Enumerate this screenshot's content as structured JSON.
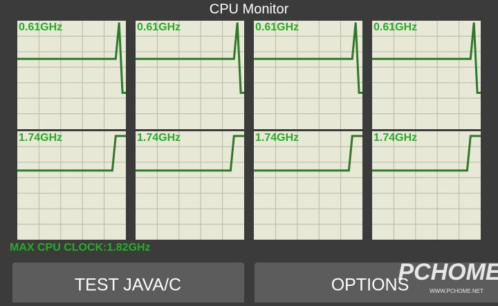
{
  "title": "CPU Monitor",
  "chart_data": [
    {
      "type": "line",
      "title": "0.61GHz",
      "ylim": [
        0,
        1.82
      ],
      "color": "#2a7a26",
      "values": [
        1.18,
        1.18,
        1.18,
        1.18,
        1.18,
        1.18,
        1.18,
        1.18,
        1.18,
        1.18,
        1.18,
        1.18,
        1.18,
        1.18,
        1.18,
        1.18,
        1.18,
        1.18,
        1.18,
        1.18,
        1.18,
        1.18,
        1.18,
        1.18,
        1.18,
        1.18,
        1.18,
        1.18,
        1.18,
        1.18,
        1.79,
        0.61,
        0.61
      ]
    },
    {
      "type": "line",
      "title": "0.61GHz",
      "ylim": [
        0,
        1.82
      ],
      "color": "#2a7a26",
      "values": [
        1.18,
        1.18,
        1.18,
        1.18,
        1.18,
        1.18,
        1.18,
        1.18,
        1.18,
        1.18,
        1.18,
        1.18,
        1.18,
        1.18,
        1.18,
        1.18,
        1.18,
        1.18,
        1.18,
        1.18,
        1.18,
        1.18,
        1.18,
        1.18,
        1.18,
        1.18,
        1.18,
        1.18,
        1.18,
        1.18,
        1.79,
        0.61,
        0.61
      ]
    },
    {
      "type": "line",
      "title": "0.61GHz",
      "ylim": [
        0,
        1.82
      ],
      "color": "#2a7a26",
      "values": [
        1.18,
        1.18,
        1.18,
        1.18,
        1.18,
        1.18,
        1.18,
        1.18,
        1.18,
        1.18,
        1.18,
        1.18,
        1.18,
        1.18,
        1.18,
        1.18,
        1.18,
        1.18,
        1.18,
        1.18,
        1.18,
        1.18,
        1.18,
        1.18,
        1.18,
        1.18,
        1.18,
        1.18,
        1.18,
        1.18,
        1.79,
        0.61,
        0.61
      ]
    },
    {
      "type": "line",
      "title": "0.61GHz",
      "ylim": [
        0,
        1.82
      ],
      "color": "#2a7a26",
      "values": [
        1.18,
        1.18,
        1.18,
        1.18,
        1.18,
        1.18,
        1.18,
        1.18,
        1.18,
        1.18,
        1.18,
        1.18,
        1.18,
        1.18,
        1.18,
        1.18,
        1.18,
        1.18,
        1.18,
        1.18,
        1.18,
        1.18,
        1.18,
        1.18,
        1.18,
        1.18,
        1.18,
        1.18,
        1.18,
        1.18,
        1.79,
        0.61,
        0.61
      ]
    },
    {
      "type": "line",
      "title": "1.74GHz",
      "ylim": [
        0,
        1.82
      ],
      "color": "#2a7a26",
      "values": [
        1.16,
        1.16,
        1.16,
        1.16,
        1.16,
        1.16,
        1.16,
        1.16,
        1.16,
        1.16,
        1.16,
        1.16,
        1.16,
        1.16,
        1.16,
        1.16,
        1.16,
        1.16,
        1.16,
        1.16,
        1.16,
        1.16,
        1.16,
        1.16,
        1.16,
        1.16,
        1.16,
        1.16,
        1.16,
        1.74,
        1.74,
        1.74,
        1.74
      ]
    },
    {
      "type": "line",
      "title": "1.74GHz",
      "ylim": [
        0,
        1.82
      ],
      "color": "#2a7a26",
      "values": [
        1.16,
        1.16,
        1.16,
        1.16,
        1.16,
        1.16,
        1.16,
        1.16,
        1.16,
        1.16,
        1.16,
        1.16,
        1.16,
        1.16,
        1.16,
        1.16,
        1.16,
        1.16,
        1.16,
        1.16,
        1.16,
        1.16,
        1.16,
        1.16,
        1.16,
        1.16,
        1.16,
        1.16,
        1.16,
        1.74,
        1.74,
        1.74,
        1.74
      ]
    },
    {
      "type": "line",
      "title": "1.74GHz",
      "ylim": [
        0,
        1.82
      ],
      "color": "#2a7a26",
      "values": [
        1.16,
        1.16,
        1.16,
        1.16,
        1.16,
        1.16,
        1.16,
        1.16,
        1.16,
        1.16,
        1.16,
        1.16,
        1.16,
        1.16,
        1.16,
        1.16,
        1.16,
        1.16,
        1.16,
        1.16,
        1.16,
        1.16,
        1.16,
        1.16,
        1.16,
        1.16,
        1.16,
        1.16,
        1.16,
        1.74,
        1.74,
        1.74,
        1.74
      ]
    },
    {
      "type": "line",
      "title": "1.74GHz",
      "ylim": [
        0,
        1.82
      ],
      "color": "#2a7a26",
      "values": [
        1.16,
        1.16,
        1.16,
        1.16,
        1.16,
        1.16,
        1.16,
        1.16,
        1.16,
        1.16,
        1.16,
        1.16,
        1.16,
        1.16,
        1.16,
        1.16,
        1.16,
        1.16,
        1.16,
        1.16,
        1.16,
        1.16,
        1.16,
        1.16,
        1.16,
        1.16,
        1.16,
        1.16,
        1.16,
        1.74,
        1.74,
        1.74,
        1.74
      ]
    }
  ],
  "max_clock": "MAX CPU CLOCK:1.82GHz",
  "buttons": [
    "TEST JAVA/C",
    "OPTIONS"
  ],
  "watermark": {
    "logo": "PCHOME",
    "site": "WWW.PCHOME.NET"
  }
}
